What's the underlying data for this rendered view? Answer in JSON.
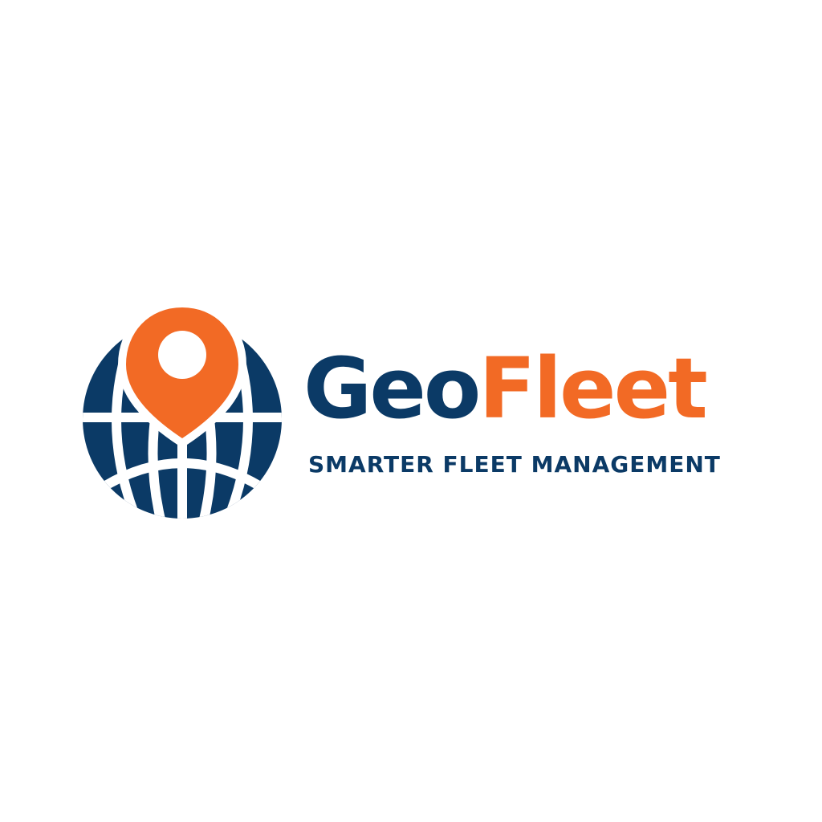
{
  "brand": {
    "name_part1": "Geo",
    "name_part2": "Fleet",
    "tagline": "SMARTER FLEET MANAGEMENT"
  },
  "logo": {
    "globe_icon": "globe-icon",
    "pin_icon": "map-pin-icon"
  },
  "colors": {
    "navy": "#0b3a66",
    "orange": "#f26a25",
    "background": "#ffffff"
  }
}
